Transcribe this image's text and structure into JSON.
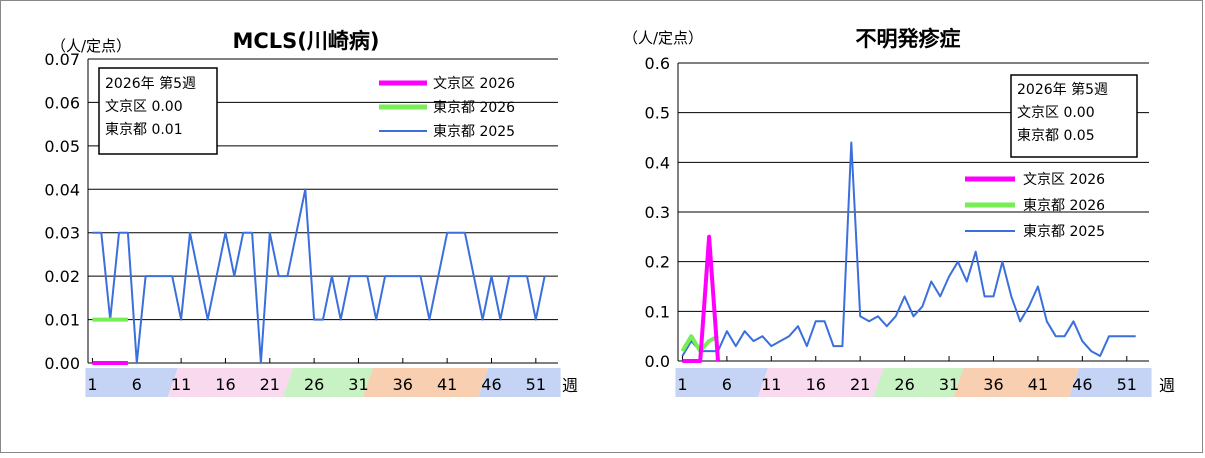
{
  "charts": [
    {
      "title": "MCLS(川崎病)",
      "unit_label": "（人/定点）",
      "ylim": [
        0,
        0.07
      ],
      "y_ticks": [
        "0.00",
        "0.01",
        "0.02",
        "0.03",
        "0.04",
        "0.05",
        "0.06",
        "0.07"
      ],
      "info_box": {
        "line1": "2026年 第5週",
        "line2": "文京区  0.00",
        "line3": "東京都  0.01"
      },
      "legend_position": "top-right",
      "week_band_labels": [
        "1",
        "6",
        "11",
        "16",
        "21",
        "26",
        "31",
        "36",
        "41",
        "46",
        "51"
      ],
      "week_unit": "週"
    },
    {
      "title": "不明発疹症",
      "unit_label": "（人/定点）",
      "ylim": [
        0,
        0.6
      ],
      "y_ticks": [
        "0.0",
        "0.1",
        "0.2",
        "0.3",
        "0.4",
        "0.5",
        "0.6"
      ],
      "info_box": {
        "line1": "2026年 第5週",
        "line2": "文京区  0.00",
        "line3": "東京都  0.05"
      },
      "legend_position": "right",
      "week_band_labels": [
        "1",
        "6",
        "11",
        "16",
        "21",
        "26",
        "31",
        "36",
        "41",
        "46",
        "51"
      ],
      "week_unit": "週"
    }
  ],
  "band_colors": [
    "#c5d4f5",
    "#f9d9ee",
    "#c8f2c3",
    "#f8cfb0",
    "#c5d4f5"
  ],
  "chart_data": [
    {
      "type": "line",
      "title": "MCLS(川崎病)",
      "xlabel": "週",
      "ylabel": "（人/定点）",
      "ylim": [
        0,
        0.07
      ],
      "xlim": [
        1,
        53
      ],
      "grid": true,
      "series": [
        {
          "name": "文京区 2026",
          "color": "#ff00ff",
          "x": [
            1,
            2,
            3,
            4,
            5
          ],
          "values": [
            0,
            0,
            0,
            0,
            0
          ]
        },
        {
          "name": "東京都 2026",
          "color": "#77ee55",
          "x": [
            1,
            2,
            3,
            4,
            5
          ],
          "values": [
            0.01,
            0.01,
            0.01,
            0.01,
            0.01
          ]
        },
        {
          "name": "東京都 2025",
          "color": "#3a6fdc",
          "x": [
            1,
            2,
            3,
            4,
            5,
            6,
            7,
            8,
            9,
            10,
            11,
            12,
            13,
            14,
            15,
            16,
            17,
            18,
            19,
            20,
            21,
            22,
            23,
            24,
            25,
            26,
            27,
            28,
            29,
            30,
            31,
            32,
            33,
            34,
            35,
            36,
            37,
            38,
            39,
            40,
            41,
            42,
            43,
            44,
            45,
            46,
            47,
            48,
            49,
            50,
            51,
            52
          ],
          "values": [
            0.03,
            0.03,
            0.01,
            0.03,
            0.03,
            0,
            0.02,
            0.02,
            0.02,
            0.02,
            0.01,
            0.03,
            0.02,
            0.01,
            0.02,
            0.03,
            0.02,
            0.03,
            0.03,
            0,
            0.03,
            0.02,
            0.02,
            0.03,
            0.04,
            0.01,
            0.01,
            0.02,
            0.01,
            0.02,
            0.02,
            0.02,
            0.01,
            0.02,
            0.02,
            0.02,
            0.02,
            0.02,
            0.01,
            0.02,
            0.03,
            0.03,
            0.03,
            0.02,
            0.01,
            0.02,
            0.01,
            0.02,
            0.02,
            0.02,
            0.01,
            0.02
          ]
        }
      ]
    },
    {
      "type": "line",
      "title": "不明発疹症",
      "xlabel": "週",
      "ylabel": "（人/定点）",
      "ylim": [
        0,
        0.6
      ],
      "xlim": [
        1,
        53
      ],
      "grid": true,
      "series": [
        {
          "name": "文京区 2026",
          "color": "#ff00ff",
          "x": [
            1,
            2,
            3,
            4,
            5
          ],
          "values": [
            0,
            0,
            0,
            0.25,
            0
          ]
        },
        {
          "name": "東京都 2026",
          "color": "#77ee55",
          "x": [
            1,
            2,
            3,
            4,
            5
          ],
          "values": [
            0.02,
            0.05,
            0.02,
            0.04,
            0.05
          ]
        },
        {
          "name": "東京都 2025",
          "color": "#3a6fdc",
          "x": [
            1,
            2,
            3,
            4,
            5,
            6,
            7,
            8,
            9,
            10,
            11,
            12,
            13,
            14,
            15,
            16,
            17,
            18,
            19,
            20,
            21,
            22,
            23,
            24,
            25,
            26,
            27,
            28,
            29,
            30,
            31,
            32,
            33,
            34,
            35,
            36,
            37,
            38,
            39,
            40,
            41,
            42,
            43,
            44,
            45,
            46,
            47,
            48,
            49,
            50,
            51,
            52
          ],
          "values": [
            0.01,
            0.04,
            0.02,
            0.02,
            0.02,
            0.06,
            0.03,
            0.06,
            0.04,
            0.05,
            0.03,
            0.04,
            0.05,
            0.07,
            0.03,
            0.08,
            0.08,
            0.03,
            0.03,
            0.44,
            0.09,
            0.08,
            0.09,
            0.07,
            0.09,
            0.13,
            0.09,
            0.11,
            0.16,
            0.13,
            0.17,
            0.2,
            0.16,
            0.22,
            0.13,
            0.13,
            0.2,
            0.13,
            0.08,
            0.11,
            0.15,
            0.08,
            0.05,
            0.05,
            0.08,
            0.04,
            0.02,
            0.01,
            0.05,
            0.05,
            0.05,
            0.05
          ]
        }
      ]
    }
  ]
}
